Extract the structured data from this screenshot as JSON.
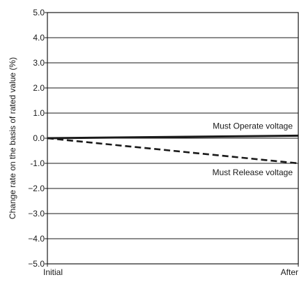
{
  "chart_data": {
    "type": "line",
    "x_categories": [
      "Initial",
      "After"
    ],
    "ylabel": "Change rate on the basis of rated value (%)",
    "ylim": [
      -5.0,
      5.0
    ],
    "y_ticks": [
      "5.0",
      "4.0",
      "3.0",
      "2.0",
      "1.0",
      "0.0",
      "-1.0",
      "−2.0",
      "−3.0",
      "−4.0",
      "−5.0"
    ],
    "grid": "horizontal",
    "series": [
      {
        "name": "Must Operate voltage",
        "values": [
          0.0,
          0.1
        ],
        "style": "solid",
        "color": "#1a1a1a"
      },
      {
        "name": "Must Release voltage",
        "values": [
          0.0,
          -1.0
        ],
        "style": "dashed",
        "color": "#1a1a1a"
      }
    ]
  }
}
